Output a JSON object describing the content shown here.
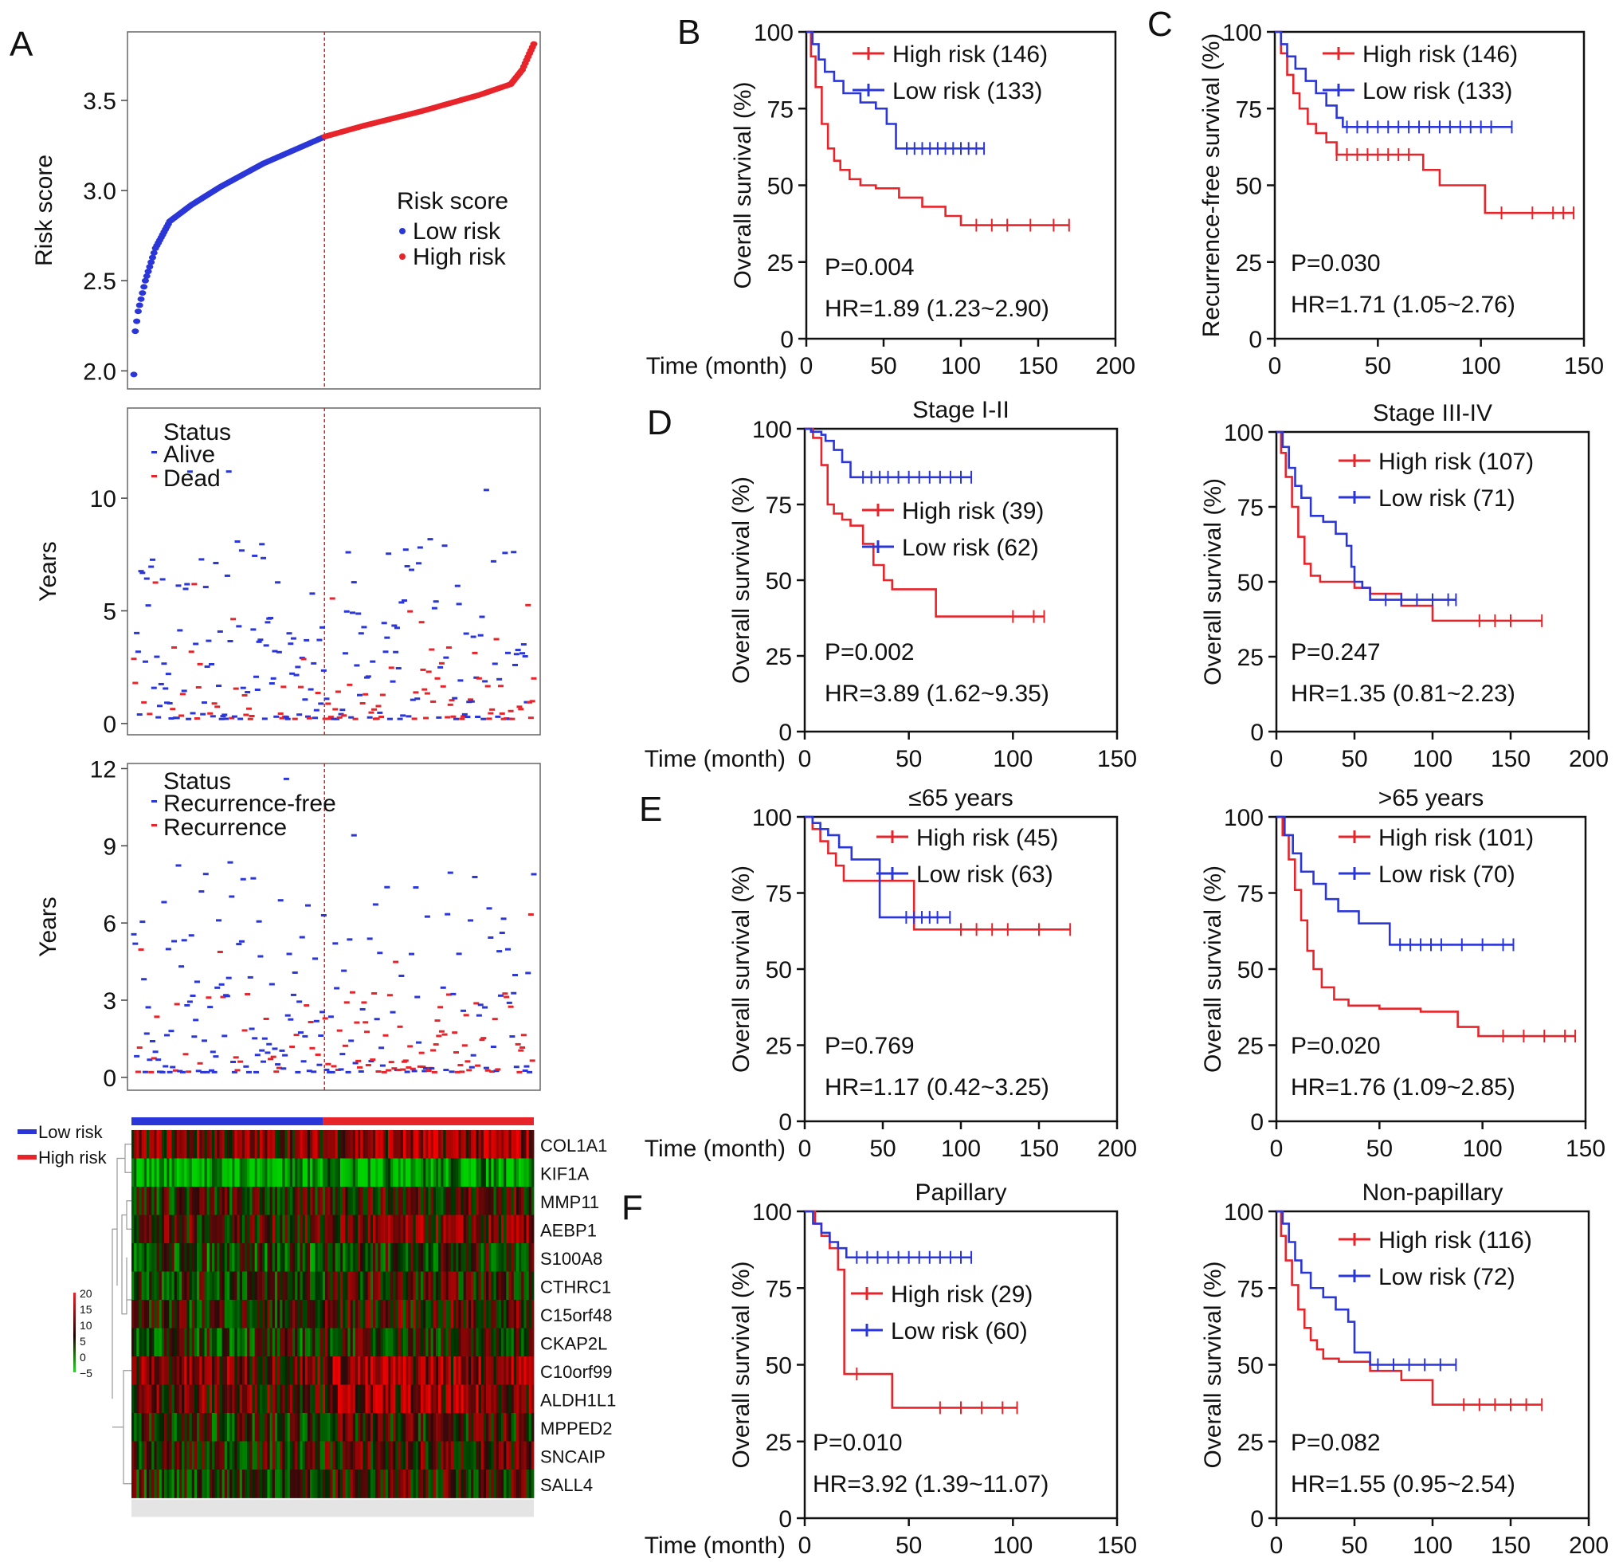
{
  "colors": {
    "high": "#e8242b",
    "low": "#2a36d8",
    "axis": "#111111",
    "dashed": "#d62020"
  },
  "panel_letters": [
    "A",
    "B",
    "C",
    "D",
    "E",
    "F"
  ],
  "chart_data": [
    {
      "id": "A-risk",
      "type": "scatter",
      "ylabel": "Risk score",
      "yticks": [
        2.0,
        2.5,
        3.0,
        3.5
      ],
      "ylim": [
        1.9,
        3.88
      ],
      "legend": {
        "title": "Risk score",
        "entries": [
          "Low risk",
          "High risk"
        ],
        "position": "right"
      },
      "n": 279,
      "cutoff_index": 133,
      "curve_knots": {
        "rank": [
          0,
          1,
          3,
          8,
          15,
          25,
          40,
          60,
          90,
          133,
          160,
          200,
          240,
          262,
          270,
          275,
          279
        ],
        "score": [
          1.98,
          2.22,
          2.33,
          2.5,
          2.68,
          2.83,
          2.92,
          3.02,
          3.15,
          3.3,
          3.36,
          3.44,
          3.53,
          3.59,
          3.67,
          3.76,
          3.83
        ]
      }
    },
    {
      "id": "A-status",
      "type": "scatter",
      "ylabel": "Years",
      "yticks": [
        0,
        5,
        10
      ],
      "ylim": [
        -0.5,
        14
      ],
      "legend": {
        "title": "Status",
        "entries": [
          "Alive",
          "Dead"
        ],
        "position": "top-left"
      }
    },
    {
      "id": "A-recurrence",
      "type": "scatter",
      "ylabel": "Years",
      "yticks": [
        0,
        3,
        6,
        9,
        12
      ],
      "ylim": [
        -0.5,
        12.2
      ],
      "legend": {
        "title": "Status",
        "entries": [
          "Recurrence-free",
          "Recurrence"
        ],
        "position": "top-left"
      }
    },
    {
      "id": "A-heatmap",
      "type": "heatmap",
      "groups": [
        "Low risk",
        "High risk"
      ],
      "genes": [
        "COL1A1",
        "KIF1A",
        "MMP11",
        "AEBP1",
        "S100A8",
        "CTHRC1",
        "C15orf48",
        "CKAP2L",
        "C10orf99",
        "ALDH1L1",
        "MPPED2",
        "SNCAIP",
        "SALL4"
      ],
      "gene_means": [
        14,
        -1,
        9,
        11,
        6,
        8,
        9,
        7,
        14,
        13,
        8,
        9,
        8
      ],
      "colorbar": {
        "ticks": [
          20,
          15,
          10,
          5,
          0,
          -5
        ],
        "range": [
          -5,
          20
        ]
      }
    },
    {
      "id": "B",
      "type": "line",
      "ylabel": "Overall survival (%)",
      "xlabel": "Time (month)",
      "xticks": [
        0,
        50,
        100,
        150,
        200
      ],
      "xlim": [
        0,
        200
      ],
      "yticks": [
        0,
        25,
        50,
        75,
        100
      ],
      "ylim": [
        0,
        100
      ],
      "pvalue": "P=0.004",
      "hr": "HR=1.89 (1.23~2.90)",
      "series": [
        {
          "name": "High risk (146)",
          "color": "high",
          "x": [
            0,
            3,
            6,
            10,
            14,
            18,
            22,
            28,
            35,
            45,
            60,
            75,
            90,
            100,
            170
          ],
          "y": [
            100,
            92,
            82,
            70,
            62,
            58,
            55,
            52,
            50,
            49,
            46,
            43,
            40,
            37,
            37
          ],
          "censor": [
            110,
            120,
            130,
            145,
            160,
            170
          ]
        },
        {
          "name": "Low risk (133)",
          "color": "low",
          "x": [
            0,
            4,
            8,
            12,
            18,
            24,
            35,
            45,
            52,
            58,
            115
          ],
          "y": [
            100,
            96,
            91,
            87,
            84,
            80,
            77,
            75,
            70,
            62,
            62
          ],
          "censor": [
            65,
            70,
            75,
            80,
            85,
            90,
            95,
            100,
            105,
            110,
            115
          ]
        }
      ]
    },
    {
      "id": "C",
      "type": "line",
      "ylabel": "Recurrence-free survival (%)",
      "xlabel": "",
      "xticks": [
        0,
        50,
        100,
        150
      ],
      "xlim": [
        0,
        150
      ],
      "yticks": [
        0,
        25,
        50,
        75,
        100
      ],
      "ylim": [
        0,
        100
      ],
      "pvalue": "P=0.030",
      "hr": "HR=1.71 (1.05~2.76)",
      "series": [
        {
          "name": "High risk (146)",
          "color": "high",
          "x": [
            0,
            3,
            6,
            9,
            12,
            16,
            20,
            25,
            30,
            50,
            72,
            80,
            90,
            102,
            145
          ],
          "y": [
            100,
            93,
            86,
            80,
            75,
            70,
            67,
            64,
            60,
            60,
            55,
            50,
            50,
            41,
            41
          ],
          "censor": [
            30,
            35,
            40,
            45,
            50,
            55,
            60,
            65,
            110,
            125,
            135,
            140,
            145
          ]
        },
        {
          "name": "Low risk (133)",
          "color": "low",
          "x": [
            0,
            3,
            6,
            10,
            15,
            20,
            25,
            30,
            33,
            115
          ],
          "y": [
            100,
            96,
            92,
            88,
            84,
            80,
            76,
            72,
            69,
            69
          ],
          "censor": [
            35,
            40,
            45,
            50,
            55,
            60,
            65,
            70,
            75,
            80,
            85,
            90,
            95,
            100,
            105,
            115
          ]
        }
      ]
    },
    {
      "id": "D1",
      "type": "line",
      "title": "Stage I-II",
      "ylabel": "Overall survival (%)",
      "xlabel": "Time (month)",
      "xticks": [
        0,
        50,
        100,
        150
      ],
      "xlim": [
        0,
        150
      ],
      "yticks": [
        0,
        25,
        50,
        75,
        100
      ],
      "ylim": [
        0,
        100
      ],
      "pvalue": "P=0.002",
      "hr": "HR=3.89 (1.62~9.35)",
      "series": [
        {
          "name": "High risk (39)",
          "color": "high",
          "x": [
            0,
            4,
            8,
            11,
            14,
            18,
            22,
            28,
            33,
            38,
            42,
            63,
            115
          ],
          "y": [
            100,
            97,
            88,
            75,
            72,
            70,
            68,
            62,
            55,
            50,
            47,
            38,
            38
          ],
          "censor": [
            100,
            110,
            115
          ]
        },
        {
          "name": "Low risk (62)",
          "color": "low",
          "x": [
            0,
            3,
            8,
            10,
            14,
            18,
            22,
            80
          ],
          "y": [
            100,
            99,
            98,
            96,
            93,
            89,
            84,
            84
          ],
          "censor": [
            28,
            32,
            36,
            40,
            45,
            50,
            55,
            60,
            65,
            70,
            75,
            80
          ]
        }
      ]
    },
    {
      "id": "D2",
      "type": "line",
      "title": "Stage III-IV",
      "ylabel": "Overall survival (%)",
      "xlabel": "",
      "xticks": [
        0,
        50,
        100,
        150,
        200
      ],
      "xlim": [
        0,
        200
      ],
      "yticks": [
        0,
        25,
        50,
        75,
        100
      ],
      "ylim": [
        0,
        100
      ],
      "pvalue": "P=0.247",
      "hr": "HR=1.35 (0.81~2.23)",
      "series": [
        {
          "name": "High risk (107)",
          "color": "high",
          "x": [
            0,
            3,
            6,
            10,
            14,
            18,
            22,
            28,
            35,
            50,
            60,
            80,
            100,
            170
          ],
          "y": [
            100,
            93,
            85,
            75,
            65,
            56,
            52,
            50,
            50,
            48,
            46,
            42,
            37,
            37
          ],
          "censor": [
            130,
            140,
            150,
            170
          ]
        },
        {
          "name": "Low risk (71)",
          "color": "low",
          "x": [
            0,
            4,
            8,
            12,
            16,
            22,
            30,
            38,
            45,
            48,
            50,
            55,
            60,
            115
          ],
          "y": [
            100,
            95,
            88,
            82,
            78,
            72,
            70,
            66,
            62,
            55,
            50,
            48,
            44,
            44
          ],
          "censor": [
            70,
            80,
            90,
            100,
            110,
            115
          ]
        }
      ]
    },
    {
      "id": "E1",
      "type": "line",
      "title": "≤65 years",
      "ylabel": "Overall survival (%)",
      "xlabel": "Time (month)",
      "xticks": [
        0,
        50,
        100,
        150,
        200
      ],
      "xlim": [
        0,
        200
      ],
      "yticks": [
        0,
        25,
        50,
        75,
        100
      ],
      "ylim": [
        0,
        100
      ],
      "pvalue": "P=0.769",
      "hr": "HR=1.17 (0.42~3.25)",
      "series": [
        {
          "name": "High risk (45)",
          "color": "high",
          "x": [
            0,
            5,
            10,
            15,
            20,
            25,
            68,
            70,
            170
          ],
          "y": [
            100,
            96,
            92,
            88,
            84,
            79,
            79,
            63,
            63
          ],
          "censor": [
            100,
            110,
            120,
            130,
            150,
            170
          ]
        },
        {
          "name": "Low risk (63)",
          "color": "low",
          "x": [
            0,
            5,
            10,
            15,
            22,
            30,
            45,
            48,
            60,
            70,
            93
          ],
          "y": [
            100,
            98,
            96,
            94,
            90,
            86,
            86,
            67,
            67,
            67,
            67
          ],
          "censor": [
            65,
            70,
            75,
            80,
            85,
            93
          ]
        }
      ]
    },
    {
      "id": "E2",
      "type": "line",
      "title": ">65 years",
      "ylabel": "Overall survival (%)",
      "xlabel": "",
      "xticks": [
        0,
        50,
        100,
        150
      ],
      "xlim": [
        0,
        150
      ],
      "yticks": [
        0,
        25,
        50,
        75,
        100
      ],
      "ylim": [
        0,
        100
      ],
      "pvalue": "P=0.020",
      "hr": "HR=1.76 (1.09~2.85)",
      "series": [
        {
          "name": "High risk (101)",
          "color": "high",
          "x": [
            0,
            3,
            6,
            9,
            12,
            15,
            18,
            22,
            28,
            35,
            50,
            70,
            88,
            98,
            145
          ],
          "y": [
            100,
            94,
            86,
            76,
            66,
            56,
            50,
            44,
            40,
            38,
            37,
            36,
            31,
            28,
            28
          ],
          "censor": [
            110,
            120,
            130,
            140,
            145
          ]
        },
        {
          "name": "Low risk (70)",
          "color": "low",
          "x": [
            0,
            4,
            8,
            12,
            18,
            24,
            30,
            40,
            55,
            115
          ],
          "y": [
            100,
            94,
            88,
            82,
            78,
            73,
            69,
            65,
            58,
            58
          ],
          "censor": [
            60,
            65,
            70,
            75,
            80,
            90,
            100,
            110,
            115
          ]
        }
      ]
    },
    {
      "id": "F1",
      "type": "line",
      "title": "Papillary",
      "ylabel": "Overall survival (%)",
      "xlabel": "Time (month)",
      "xticks": [
        0,
        50,
        100,
        150
      ],
      "xlim": [
        0,
        150
      ],
      "yticks": [
        0,
        25,
        50,
        75,
        100
      ],
      "ylim": [
        0,
        100
      ],
      "pvalue": "P=0.010",
      "hr": "HR=3.92 (1.39~11.07)",
      "series": [
        {
          "name": "High risk (29)",
          "color": "high",
          "x": [
            0,
            5,
            8,
            12,
            16,
            19,
            42,
            102
          ],
          "y": [
            100,
            96,
            92,
            88,
            81,
            47,
            36,
            36
          ],
          "censor": [
            25,
            65,
            75,
            85,
            95,
            102
          ]
        },
        {
          "name": "Low risk (60)",
          "color": "low",
          "x": [
            0,
            4,
            8,
            12,
            16,
            20,
            80
          ],
          "y": [
            100,
            96,
            93,
            90,
            88,
            85,
            85
          ],
          "censor": [
            25,
            30,
            35,
            40,
            45,
            50,
            55,
            60,
            65,
            70,
            75,
            80
          ]
        }
      ]
    },
    {
      "id": "F2",
      "type": "line",
      "title": "Non-papillary",
      "ylabel": "Overall survival (%)",
      "xlabel": "",
      "xticks": [
        0,
        50,
        100,
        150,
        200
      ],
      "xlim": [
        0,
        200
      ],
      "yticks": [
        0,
        25,
        50,
        75,
        100
      ],
      "ylim": [
        0,
        100
      ],
      "pvalue": "P=0.082",
      "hr": "HR=1.55 (0.95~2.54)",
      "series": [
        {
          "name": "High risk (116)",
          "color": "high",
          "x": [
            0,
            3,
            6,
            10,
            14,
            18,
            22,
            26,
            30,
            40,
            60,
            80,
            100,
            170
          ],
          "y": [
            100,
            92,
            84,
            76,
            68,
            62,
            58,
            55,
            52,
            51,
            48,
            45,
            37,
            37
          ],
          "censor": [
            120,
            130,
            140,
            150,
            160,
            170
          ]
        },
        {
          "name": "Low risk (72)",
          "color": "low",
          "x": [
            0,
            4,
            8,
            12,
            16,
            22,
            30,
            38,
            46,
            50,
            60,
            115
          ],
          "y": [
            100,
            96,
            90,
            84,
            80,
            75,
            72,
            68,
            64,
            54,
            50,
            50
          ],
          "censor": [
            65,
            75,
            85,
            95,
            105,
            115
          ]
        }
      ]
    }
  ]
}
